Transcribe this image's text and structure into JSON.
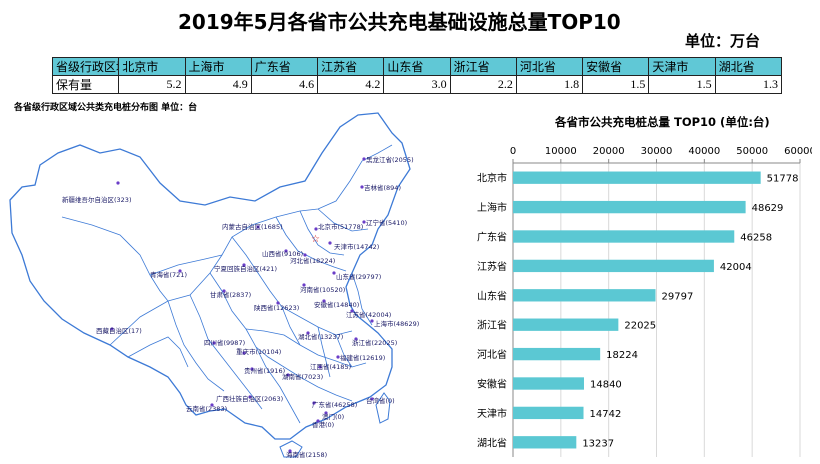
{
  "header": {
    "title": "2019年5月各省市公共充电基础设施总量TOP10",
    "unit": "单位：万台"
  },
  "summary_table": {
    "header_label": "省级行政区域",
    "row_label": "保有量",
    "regions": [
      "北京市",
      "上海市",
      "广东省",
      "江苏省",
      "山东省",
      "浙江省",
      "河北省",
      "安徽省",
      "天津市",
      "湖北省"
    ],
    "values": [
      "5.2",
      "4.9",
      "4.6",
      "4.2",
      "3.0",
      "2.2",
      "1.8",
      "1.5",
      "1.5",
      "1.3"
    ]
  },
  "map": {
    "title": "各省级行政区域公共类充电桩分布图  单位：台",
    "labels": [
      "黑龙江省(2055)",
      "吉林省(894)",
      "辽宁省(5410)",
      "北京市(51778)",
      "天津市(14742)",
      "内蒙古自治区(1685)",
      "新疆维吾尔自治区(323)",
      "河北省(18224)",
      "山西省(9106)",
      "山东省(29797)",
      "宁夏回族自治区(421)",
      "青海省(721)",
      "甘肃省(2837)",
      "河南省(10520)",
      "陕西省(12623)",
      "安徽省(14840)",
      "江苏省(42004)",
      "上海市(48629)",
      "湖北省(13237)",
      "浙江省(22025)",
      "西藏自治区(17)",
      "四川省(9987)",
      "重庆市(10104)",
      "江西省(4185)",
      "福建省(12619)",
      "贵州省(1916)",
      "湖南省(7023)",
      "广西壮族自治区(2063)",
      "云南省(2383)",
      "广东省(46258)",
      "台湾省(0)",
      "澳门(0)",
      "香港(0)",
      "海南省(2158)"
    ]
  },
  "chart_data": {
    "type": "bar",
    "orientation": "horizontal",
    "title": "各省市公共充电桩总量 TOP10   (单位:台)",
    "categories": [
      "北京市",
      "上海市",
      "广东省",
      "江苏省",
      "山东省",
      "浙江省",
      "河北省",
      "安徽省",
      "天津市",
      "湖北省"
    ],
    "values": [
      51778,
      48629,
      46258,
      42004,
      29797,
      22025,
      18224,
      14840,
      14742,
      13237
    ],
    "xlim": [
      0,
      60000
    ],
    "xticks": [
      "0",
      "10000",
      "20000",
      "30000",
      "40000",
      "50000",
      "60000"
    ],
    "grid": true,
    "bar_color": "#5bc8d3",
    "data_labels": [
      "51778",
      "48629",
      "46258",
      "42004",
      "29797",
      "22025",
      "18224",
      "14840",
      "14742",
      "13237"
    ]
  }
}
